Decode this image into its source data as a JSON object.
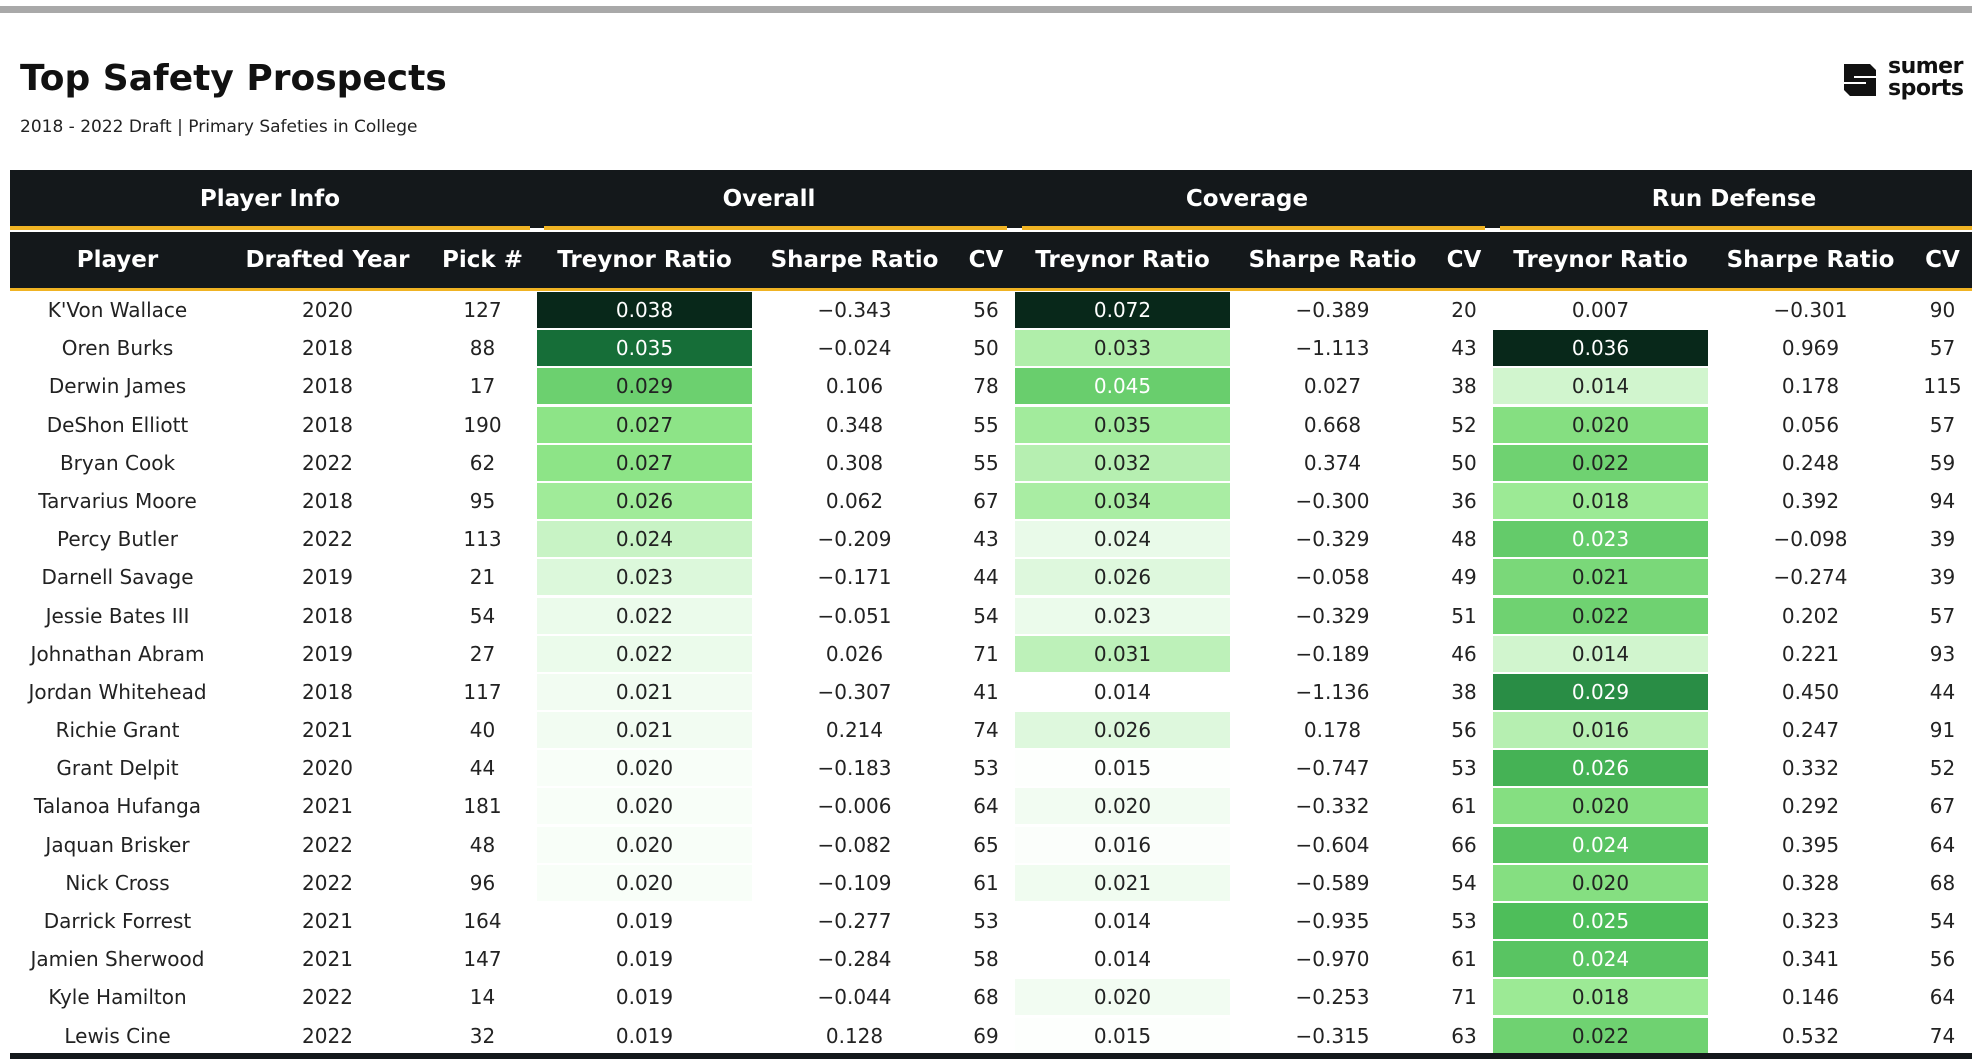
{
  "title": "Top Safety Prospects",
  "subtitle": "2018 - 2022 Draft | Primary Safeties in College",
  "logo": {
    "line1": "sumer",
    "line2": "sports"
  },
  "colors": {
    "header_bg": "#14181b",
    "accent": "#f0b323",
    "heat_low": "#ffffff",
    "heat_high": "#08301c"
  },
  "groups": [
    "Player Info",
    "Overall",
    "Coverage",
    "Run Defense"
  ],
  "columns": [
    "Player",
    "Drafted Year",
    "Pick #",
    "Treynor Ratio",
    "Sharpe Ratio",
    "CV",
    "Treynor Ratio",
    "Sharpe Ratio",
    "CV",
    "Treynor Ratio",
    "Sharpe Ratio",
    "CV"
  ],
  "rows": [
    [
      "K'Von Wallace",
      "2020",
      "127",
      "0.038",
      "−0.343",
      "56",
      "0.072",
      "−0.389",
      "20",
      "0.007",
      "−0.301",
      "90"
    ],
    [
      "Oren Burks",
      "2018",
      "88",
      "0.035",
      "−0.024",
      "50",
      "0.033",
      "−1.113",
      "43",
      "0.036",
      "0.969",
      "57"
    ],
    [
      "Derwin James",
      "2018",
      "17",
      "0.029",
      "0.106",
      "78",
      "0.045",
      "0.027",
      "38",
      "0.014",
      "0.178",
      "115"
    ],
    [
      "DeShon Elliott",
      "2018",
      "190",
      "0.027",
      "0.348",
      "55",
      "0.035",
      "0.668",
      "52",
      "0.020",
      "0.056",
      "57"
    ],
    [
      "Bryan Cook",
      "2022",
      "62",
      "0.027",
      "0.308",
      "55",
      "0.032",
      "0.374",
      "50",
      "0.022",
      "0.248",
      "59"
    ],
    [
      "Tarvarius Moore",
      "2018",
      "95",
      "0.026",
      "0.062",
      "67",
      "0.034",
      "−0.300",
      "36",
      "0.018",
      "0.392",
      "94"
    ],
    [
      "Percy Butler",
      "2022",
      "113",
      "0.024",
      "−0.209",
      "43",
      "0.024",
      "−0.329",
      "48",
      "0.023",
      "−0.098",
      "39"
    ],
    [
      "Darnell Savage",
      "2019",
      "21",
      "0.023",
      "−0.171",
      "44",
      "0.026",
      "−0.058",
      "49",
      "0.021",
      "−0.274",
      "39"
    ],
    [
      "Jessie Bates III",
      "2018",
      "54",
      "0.022",
      "−0.051",
      "54",
      "0.023",
      "−0.329",
      "51",
      "0.022",
      "0.202",
      "57"
    ],
    [
      "Johnathan Abram",
      "2019",
      "27",
      "0.022",
      "0.026",
      "71",
      "0.031",
      "−0.189",
      "46",
      "0.014",
      "0.221",
      "93"
    ],
    [
      "Jordan Whitehead",
      "2018",
      "117",
      "0.021",
      "−0.307",
      "41",
      "0.014",
      "−1.136",
      "38",
      "0.029",
      "0.450",
      "44"
    ],
    [
      "Richie Grant",
      "2021",
      "40",
      "0.021",
      "0.214",
      "74",
      "0.026",
      "0.178",
      "56",
      "0.016",
      "0.247",
      "91"
    ],
    [
      "Grant Delpit",
      "2020",
      "44",
      "0.020",
      "−0.183",
      "53",
      "0.015",
      "−0.747",
      "53",
      "0.026",
      "0.332",
      "52"
    ],
    [
      "Talanoa Hufanga",
      "2021",
      "181",
      "0.020",
      "−0.006",
      "64",
      "0.020",
      "−0.332",
      "61",
      "0.020",
      "0.292",
      "67"
    ],
    [
      "Jaquan Brisker",
      "2022",
      "48",
      "0.020",
      "−0.082",
      "65",
      "0.016",
      "−0.604",
      "66",
      "0.024",
      "0.395",
      "64"
    ],
    [
      "Nick Cross",
      "2022",
      "96",
      "0.020",
      "−0.109",
      "61",
      "0.021",
      "−0.589",
      "54",
      "0.020",
      "0.328",
      "68"
    ],
    [
      "Darrick Forrest",
      "2021",
      "164",
      "0.019",
      "−0.277",
      "53",
      "0.014",
      "−0.935",
      "53",
      "0.025",
      "0.323",
      "54"
    ],
    [
      "Jamien Sherwood",
      "2021",
      "147",
      "0.019",
      "−0.284",
      "58",
      "0.014",
      "−0.970",
      "61",
      "0.024",
      "0.341",
      "56"
    ],
    [
      "Kyle Hamilton",
      "2022",
      "14",
      "0.019",
      "−0.044",
      "68",
      "0.020",
      "−0.253",
      "71",
      "0.018",
      "0.146",
      "64"
    ],
    [
      "Lewis Cine",
      "2022",
      "32",
      "0.019",
      "0.128",
      "69",
      "0.015",
      "−0.315",
      "63",
      "0.022",
      "0.532",
      "74"
    ]
  ]
}
